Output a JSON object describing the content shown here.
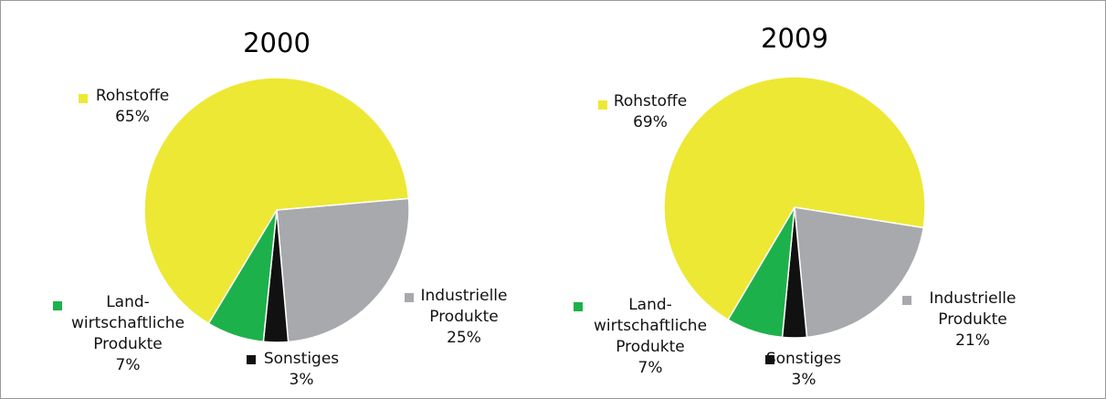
{
  "chart_data": [
    {
      "type": "pie",
      "title": "2000",
      "categories": [
        "Industrielle\nProdukte",
        "Sonstiges",
        "Land-\nwirtschaftliche\nProdukte",
        "Rohstoffe"
      ],
      "values": [
        25,
        3,
        7,
        65
      ],
      "value_labels": [
        "25%",
        "3%",
        "7%",
        "65%"
      ],
      "colors": [
        "#a7a9ac",
        "#111111",
        "#1db14b",
        "#ede834"
      ]
    },
    {
      "type": "pie",
      "title": "2009",
      "categories": [
        "Industrielle\nProdukte",
        "Sonstiges",
        "Land-\nwirtschaftliche\nProdukte",
        "Rohstoffe"
      ],
      "values": [
        21,
        3,
        7,
        69
      ],
      "value_labels": [
        "21%",
        "3%",
        "7%",
        "69%"
      ],
      "colors": [
        "#a7a9ac",
        "#111111",
        "#1db14b",
        "#ede834"
      ]
    }
  ]
}
